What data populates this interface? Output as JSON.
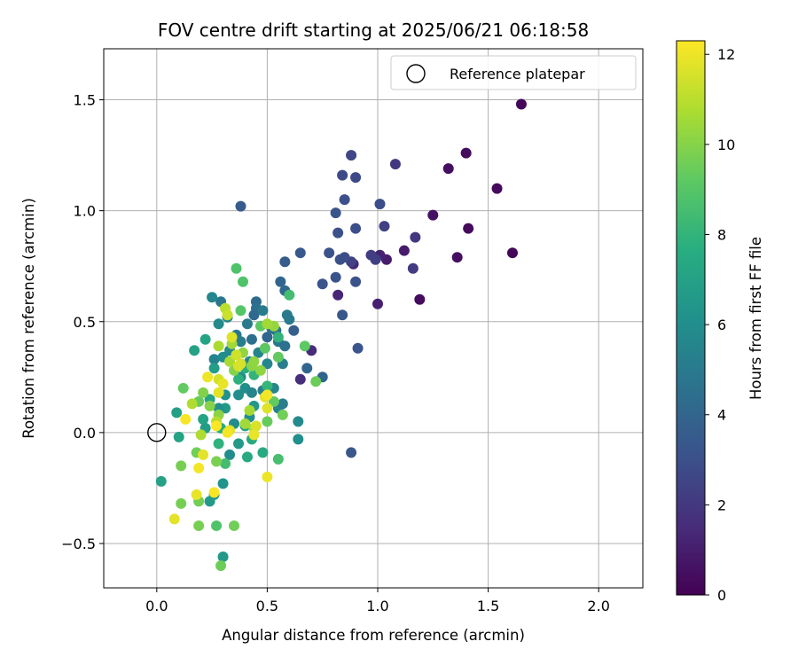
{
  "chart_data": {
    "type": "scatter",
    "title": "FOV centre drift starting at 2025/06/21 06:18:58",
    "xlabel": "Angular distance from reference (arcmin)",
    "ylabel": "Rotation from reference (arcmin)",
    "xlim": [
      -0.24,
      2.2
    ],
    "ylim": [
      -0.7,
      1.73
    ],
    "xticks": [
      0.0,
      0.5,
      1.0,
      1.5,
      2.0
    ],
    "xtick_labels": [
      "0.0",
      "0.5",
      "1.0",
      "1.5",
      "2.0"
    ],
    "yticks": [
      -0.5,
      0.0,
      0.5,
      1.0,
      1.5
    ],
    "ytick_labels": [
      "−0.5",
      "0.0",
      "0.5",
      "1.0",
      "1.5"
    ],
    "grid": true,
    "legend": {
      "placement": "top-right",
      "entries": [
        "Reference platepar"
      ]
    },
    "reference_point": {
      "x": 0.0,
      "y": 0.0,
      "label": "Reference platepar"
    },
    "colorbar": {
      "label": "Hours from first FF file",
      "colormap": "viridis",
      "range": [
        0,
        12.3
      ],
      "ticks": [
        0,
        2,
        4,
        6,
        8,
        10,
        12
      ],
      "tick_labels": [
        "0",
        "2",
        "4",
        "6",
        "8",
        "10",
        "12"
      ]
    },
    "points": [
      {
        "x": 1.65,
        "y": 1.48,
        "c": 0.2
      },
      {
        "x": 1.4,
        "y": 1.26,
        "c": 0.4
      },
      {
        "x": 1.32,
        "y": 1.19,
        "c": 0.5
      },
      {
        "x": 1.54,
        "y": 1.1,
        "c": 0.3
      },
      {
        "x": 1.25,
        "y": 0.98,
        "c": 0.6
      },
      {
        "x": 1.41,
        "y": 0.92,
        "c": 0.3
      },
      {
        "x": 1.61,
        "y": 0.81,
        "c": 0.2
      },
      {
        "x": 1.36,
        "y": 0.79,
        "c": 0.5
      },
      {
        "x": 1.19,
        "y": 0.6,
        "c": 0.4
      },
      {
        "x": 1.12,
        "y": 0.82,
        "c": 0.9
      },
      {
        "x": 1.04,
        "y": 0.78,
        "c": 1.0
      },
      {
        "x": 1.01,
        "y": 0.8,
        "c": 1.2
      },
      {
        "x": 1.0,
        "y": 0.58,
        "c": 1.1
      },
      {
        "x": 0.82,
        "y": 0.62,
        "c": 1.3
      },
      {
        "x": 0.89,
        "y": 0.76,
        "c": 1.3
      },
      {
        "x": 0.7,
        "y": 0.37,
        "c": 1.5
      },
      {
        "x": 0.65,
        "y": 0.24,
        "c": 1.6
      },
      {
        "x": 1.08,
        "y": 1.21,
        "c": 2.0
      },
      {
        "x": 1.17,
        "y": 0.88,
        "c": 2.0
      },
      {
        "x": 1.16,
        "y": 0.74,
        "c": 2.1
      },
      {
        "x": 0.97,
        "y": 0.8,
        "c": 2.2
      },
      {
        "x": 0.99,
        "y": 0.78,
        "c": 2.3
      },
      {
        "x": 1.03,
        "y": 0.93,
        "c": 2.3
      },
      {
        "x": 0.88,
        "y": 0.77,
        "c": 2.4
      },
      {
        "x": 0.88,
        "y": 1.25,
        "c": 2.6
      },
      {
        "x": 0.9,
        "y": 1.15,
        "c": 2.7
      },
      {
        "x": 0.84,
        "y": 1.16,
        "c": 2.8
      },
      {
        "x": 1.01,
        "y": 1.03,
        "c": 2.9
      },
      {
        "x": 0.9,
        "y": 0.92,
        "c": 2.9
      },
      {
        "x": 0.82,
        "y": 0.9,
        "c": 3.0
      },
      {
        "x": 0.85,
        "y": 1.05,
        "c": 3.0
      },
      {
        "x": 0.81,
        "y": 0.99,
        "c": 3.2
      },
      {
        "x": 0.83,
        "y": 0.78,
        "c": 3.0
      },
      {
        "x": 0.85,
        "y": 0.79,
        "c": 2.9
      },
      {
        "x": 0.78,
        "y": 0.81,
        "c": 3.1
      },
      {
        "x": 0.81,
        "y": 0.7,
        "c": 3.1
      },
      {
        "x": 0.75,
        "y": 0.67,
        "c": 3.2
      },
      {
        "x": 0.9,
        "y": 0.68,
        "c": 3.1
      },
      {
        "x": 0.84,
        "y": 0.53,
        "c": 3.3
      },
      {
        "x": 0.91,
        "y": 0.38,
        "c": 3.2
      },
      {
        "x": 0.88,
        "y": -0.09,
        "c": 3.3
      },
      {
        "x": 0.38,
        "y": 1.02,
        "c": 3.5
      },
      {
        "x": 0.65,
        "y": 0.81,
        "c": 3.4
      },
      {
        "x": 0.58,
        "y": 0.77,
        "c": 3.6
      },
      {
        "x": 0.56,
        "y": 0.68,
        "c": 4.0
      },
      {
        "x": 0.58,
        "y": 0.64,
        "c": 4.2
      },
      {
        "x": 0.62,
        "y": 0.46,
        "c": 3.6
      },
      {
        "x": 0.68,
        "y": 0.29,
        "c": 4.0
      },
      {
        "x": 0.75,
        "y": 0.25,
        "c": 4.0
      },
      {
        "x": 0.45,
        "y": 0.59,
        "c": 4.3
      },
      {
        "x": 0.45,
        "y": 0.56,
        "c": 4.5
      },
      {
        "x": 0.44,
        "y": 0.53,
        "c": 4.2
      },
      {
        "x": 0.43,
        "y": 0.42,
        "c": 4.4
      },
      {
        "x": 0.5,
        "y": 0.43,
        "c": 4.0
      },
      {
        "x": 0.52,
        "y": 0.47,
        "c": 4.5
      },
      {
        "x": 0.54,
        "y": 0.46,
        "c": 4.6
      },
      {
        "x": 0.55,
        "y": 0.41,
        "c": 4.8
      },
      {
        "x": 0.58,
        "y": 0.39,
        "c": 4.6
      },
      {
        "x": 0.59,
        "y": 0.53,
        "c": 5.0
      },
      {
        "x": 0.6,
        "y": 0.51,
        "c": 5.0
      },
      {
        "x": 0.57,
        "y": 0.31,
        "c": 5.2
      },
      {
        "x": 0.48,
        "y": 0.55,
        "c": 5.0
      },
      {
        "x": 0.41,
        "y": 0.49,
        "c": 5.0
      },
      {
        "x": 0.36,
        "y": 0.44,
        "c": 4.9
      },
      {
        "x": 0.38,
        "y": 0.41,
        "c": 5.1
      },
      {
        "x": 0.42,
        "y": 0.32,
        "c": 5.5
      },
      {
        "x": 0.46,
        "y": 0.36,
        "c": 5.5
      },
      {
        "x": 0.5,
        "y": 0.31,
        "c": 5.6
      },
      {
        "x": 0.48,
        "y": 0.19,
        "c": 5.2
      },
      {
        "x": 0.53,
        "y": 0.2,
        "c": 5.6
      },
      {
        "x": 0.55,
        "y": 0.11,
        "c": 5.4
      },
      {
        "x": 0.57,
        "y": 0.13,
        "c": 5.2
      },
      {
        "x": 0.64,
        "y": 0.05,
        "c": 5.8
      },
      {
        "x": 0.64,
        "y": -0.03,
        "c": 6.1
      },
      {
        "x": 0.29,
        "y": 0.59,
        "c": 4.8
      },
      {
        "x": 0.25,
        "y": 0.61,
        "c": 5.6
      },
      {
        "x": 0.28,
        "y": 0.49,
        "c": 5.8
      },
      {
        "x": 0.32,
        "y": 0.52,
        "c": 5.6
      },
      {
        "x": 0.26,
        "y": 0.33,
        "c": 5.4
      },
      {
        "x": 0.3,
        "y": 0.34,
        "c": 6.0
      },
      {
        "x": 0.33,
        "y": 0.37,
        "c": 5.8
      },
      {
        "x": 0.38,
        "y": 0.25,
        "c": 5.8
      },
      {
        "x": 0.4,
        "y": 0.2,
        "c": 6.1
      },
      {
        "x": 0.43,
        "y": 0.18,
        "c": 5.5
      },
      {
        "x": 0.37,
        "y": 0.17,
        "c": 5.9
      },
      {
        "x": 0.31,
        "y": 0.17,
        "c": 6.2
      },
      {
        "x": 0.35,
        "y": 0.04,
        "c": 5.9
      },
      {
        "x": 0.42,
        "y": 0.07,
        "c": 6.0
      },
      {
        "x": 0.44,
        "y": 0.12,
        "c": 6.5
      },
      {
        "x": 0.31,
        "y": 0.11,
        "c": 6.6
      },
      {
        "x": 0.28,
        "y": 0.11,
        "c": 6.1
      },
      {
        "x": 0.33,
        "y": -0.1,
        "c": 5.9
      },
      {
        "x": 0.37,
        "y": -0.05,
        "c": 6.6
      },
      {
        "x": 0.3,
        "y": -0.23,
        "c": 6.3
      },
      {
        "x": 0.26,
        "y": -0.28,
        "c": 6.4
      },
      {
        "x": 0.24,
        "y": -0.31,
        "c": 6.6
      },
      {
        "x": 0.3,
        "y": -0.56,
        "c": 6.5
      },
      {
        "x": 0.22,
        "y": 0.42,
        "c": 7.1
      },
      {
        "x": 0.17,
        "y": 0.37,
        "c": 7.0
      },
      {
        "x": 0.26,
        "y": 0.29,
        "c": 6.8
      },
      {
        "x": 0.24,
        "y": 0.15,
        "c": 7.1
      },
      {
        "x": 0.21,
        "y": 0.06,
        "c": 7.1
      },
      {
        "x": 0.22,
        "y": 0.02,
        "c": 6.8
      },
      {
        "x": 0.09,
        "y": 0.09,
        "c": 6.9
      },
      {
        "x": 0.1,
        "y": -0.02,
        "c": 7.1
      },
      {
        "x": 0.02,
        "y": -0.22,
        "c": 7.0
      },
      {
        "x": 0.4,
        "y": 0.03,
        "c": 7.2
      },
      {
        "x": 0.43,
        "y": -0.03,
        "c": 7.4
      },
      {
        "x": 0.48,
        "y": -0.09,
        "c": 7.5
      },
      {
        "x": 0.41,
        "y": -0.11,
        "c": 7.5
      },
      {
        "x": 0.29,
        "y": 0.02,
        "c": 7.6
      },
      {
        "x": 0.37,
        "y": 0.24,
        "c": 7.8
      },
      {
        "x": 0.4,
        "y": 0.29,
        "c": 7.7
      },
      {
        "x": 0.44,
        "y": 0.26,
        "c": 8.0
      },
      {
        "x": 0.5,
        "y": 0.21,
        "c": 8.1
      },
      {
        "x": 0.55,
        "y": 0.43,
        "c": 8.0
      },
      {
        "x": 0.6,
        "y": 0.62,
        "c": 8.5
      },
      {
        "x": 0.28,
        "y": -0.05,
        "c": 7.9
      },
      {
        "x": 0.31,
        "y": -0.14,
        "c": 8.5
      },
      {
        "x": 0.55,
        "y": -0.12,
        "c": 8.6
      },
      {
        "x": 0.27,
        "y": -0.42,
        "c": 8.8
      },
      {
        "x": 0.36,
        "y": 0.74,
        "c": 8.8
      },
      {
        "x": 0.39,
        "y": 0.68,
        "c": 8.8
      },
      {
        "x": 0.38,
        "y": 0.55,
        "c": 9.0
      },
      {
        "x": 0.47,
        "y": 0.48,
        "c": 9.1
      },
      {
        "x": 0.49,
        "y": 0.38,
        "c": 9.1
      },
      {
        "x": 0.55,
        "y": 0.34,
        "c": 9.3
      },
      {
        "x": 0.5,
        "y": 0.05,
        "c": 9.4
      },
      {
        "x": 0.53,
        "y": 0.14,
        "c": 9.3
      },
      {
        "x": 0.67,
        "y": 0.39,
        "c": 9.2
      },
      {
        "x": 0.72,
        "y": 0.23,
        "c": 9.5
      },
      {
        "x": 0.57,
        "y": 0.08,
        "c": 9.6
      },
      {
        "x": 0.12,
        "y": 0.2,
        "c": 9.3
      },
      {
        "x": 0.19,
        "y": 0.14,
        "c": 9.4
      },
      {
        "x": 0.18,
        "y": -0.09,
        "c": 9.6
      },
      {
        "x": 0.11,
        "y": -0.15,
        "c": 9.7
      },
      {
        "x": 0.11,
        "y": -0.32,
        "c": 9.7
      },
      {
        "x": 0.19,
        "y": -0.31,
        "c": 9.6
      },
      {
        "x": 0.19,
        "y": -0.42,
        "c": 9.7
      },
      {
        "x": 0.29,
        "y": -0.6,
        "c": 9.5
      },
      {
        "x": 0.35,
        "y": -0.42,
        "c": 9.6
      },
      {
        "x": 0.27,
        "y": -0.13,
        "c": 9.8
      },
      {
        "x": 0.21,
        "y": 0.18,
        "c": 9.9
      },
      {
        "x": 0.24,
        "y": 0.12,
        "c": 10.0
      },
      {
        "x": 0.28,
        "y": 0.08,
        "c": 10.1
      },
      {
        "x": 0.35,
        "y": 0.28,
        "c": 10.0
      },
      {
        "x": 0.39,
        "y": 0.36,
        "c": 10.2
      },
      {
        "x": 0.43,
        "y": 0.3,
        "c": 10.1
      },
      {
        "x": 0.47,
        "y": 0.28,
        "c": 10.2
      },
      {
        "x": 0.53,
        "y": 0.48,
        "c": 10.3
      },
      {
        "x": 0.5,
        "y": 0.49,
        "c": 10.5
      },
      {
        "x": 0.44,
        "y": 0.32,
        "c": 10.2
      },
      {
        "x": 0.42,
        "y": 0.1,
        "c": 10.6
      },
      {
        "x": 0.4,
        "y": 0.04,
        "c": 10.5
      },
      {
        "x": 0.44,
        "y": 0.02,
        "c": 10.8
      },
      {
        "x": 0.33,
        "y": 0.32,
        "c": 10.7
      },
      {
        "x": 0.28,
        "y": 0.39,
        "c": 10.7
      },
      {
        "x": 0.34,
        "y": 0.4,
        "c": 10.5
      },
      {
        "x": 0.2,
        "y": -0.01,
        "c": 10.8
      },
      {
        "x": 0.16,
        "y": 0.13,
        "c": 10.8
      },
      {
        "x": 0.27,
        "y": 0.05,
        "c": 10.9
      },
      {
        "x": 0.31,
        "y": 0.56,
        "c": 11.0
      },
      {
        "x": 0.32,
        "y": 0.53,
        "c": 11.3
      },
      {
        "x": 0.36,
        "y": 0.35,
        "c": 11.4
      },
      {
        "x": 0.38,
        "y": 0.31,
        "c": 11.5
      },
      {
        "x": 0.37,
        "y": 0.3,
        "c": 11.6
      },
      {
        "x": 0.34,
        "y": 0.43,
        "c": 11.7
      },
      {
        "x": 0.28,
        "y": 0.24,
        "c": 11.5
      },
      {
        "x": 0.28,
        "y": 0.18,
        "c": 11.8
      },
      {
        "x": 0.23,
        "y": 0.25,
        "c": 12.0
      },
      {
        "x": 0.3,
        "y": 0.22,
        "c": 11.9
      },
      {
        "x": 0.5,
        "y": 0.11,
        "c": 11.7
      },
      {
        "x": 0.49,
        "y": 0.16,
        "c": 11.8
      },
      {
        "x": 0.5,
        "y": 0.17,
        "c": 12.1
      },
      {
        "x": 0.45,
        "y": 0.03,
        "c": 11.6
      },
      {
        "x": 0.44,
        "y": -0.01,
        "c": 11.9
      },
      {
        "x": 0.33,
        "y": 0.01,
        "c": 11.7
      },
      {
        "x": 0.32,
        "y": 0.0,
        "c": 12.1
      },
      {
        "x": 0.21,
        "y": -0.1,
        "c": 11.8
      },
      {
        "x": 0.19,
        "y": -0.16,
        "c": 12.1
      },
      {
        "x": 0.18,
        "y": -0.28,
        "c": 11.9
      },
      {
        "x": 0.08,
        "y": -0.39,
        "c": 11.8
      },
      {
        "x": 0.26,
        "y": -0.27,
        "c": 12.2
      },
      {
        "x": 0.5,
        "y": -0.2,
        "c": 12.0
      },
      {
        "x": 0.13,
        "y": 0.06,
        "c": 12.2
      },
      {
        "x": 0.27,
        "y": 0.03,
        "c": 12.3
      }
    ]
  }
}
